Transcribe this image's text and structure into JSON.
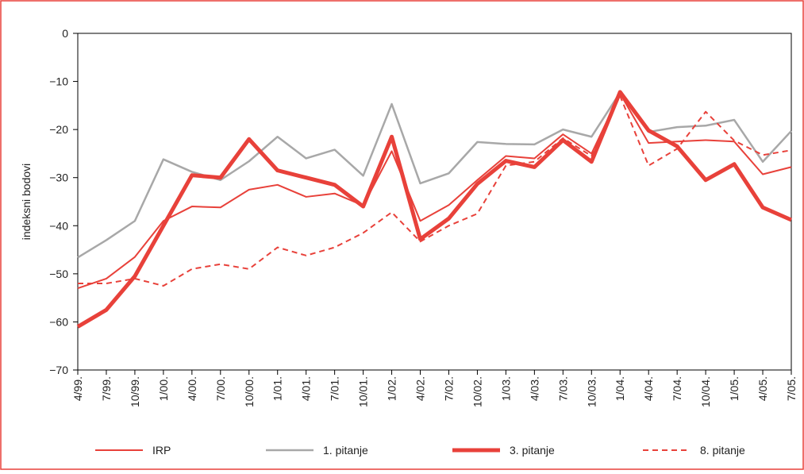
{
  "chart_data": {
    "type": "line",
    "ylabel": "indeksni bodovi",
    "categories": [
      "4/99.",
      "7/99.",
      "10/99.",
      "1/00.",
      "4/00.",
      "7/00.",
      "10/00.",
      "1/01.",
      "4/01.",
      "7/01.",
      "10/01.",
      "1/02.",
      "4/02.",
      "7/02.",
      "10/02.",
      "1/03.",
      "4/03.",
      "7/03.",
      "10/03.",
      "1/04.",
      "4/04.",
      "7/04.",
      "10/04.",
      "1/05.",
      "4/05.",
      "7/05."
    ],
    "series": [
      {
        "name": "IRP",
        "color": "#e8413a",
        "width": 2,
        "dash": false,
        "values": [
          -53,
          -51,
          -46.5,
          -39,
          -36,
          -36.2,
          -32.5,
          -31.5,
          -34,
          -33.3,
          -35.8,
          -24.5,
          -39,
          -35.7,
          -30.5,
          -25.5,
          -26,
          -21,
          -25,
          -12.5,
          -22.8,
          -22.5,
          -22.2,
          -22.5,
          -29.3,
          -27.8
        ]
      },
      {
        "name": "1. pitanje",
        "color": "#a8a8a8",
        "width": 2.5,
        "dash": false,
        "values": [
          -46.6,
          -43,
          -39,
          -26.2,
          -28.8,
          -30.5,
          -26.6,
          -21.5,
          -26,
          -24.2,
          -29.6,
          -14.7,
          -31.2,
          -29.1,
          -22.6,
          -23,
          -23.1,
          -20,
          -21.5,
          -12.3,
          -20.5,
          -19.5,
          -19.2,
          -18,
          -26.7,
          -20.3
        ]
      },
      {
        "name": "3. pitanje",
        "color": "#e8413a",
        "width": 5,
        "dash": false,
        "values": [
          -61,
          -57.5,
          -50.5,
          -40,
          -29.5,
          -30,
          -22,
          -28.5,
          -30,
          -31.5,
          -36,
          -21.5,
          -42.8,
          -38.5,
          -31.3,
          -26.5,
          -27.8,
          -22.2,
          -26.7,
          -12.2,
          -20.2,
          -23.5,
          -30.5,
          -27.2,
          -36.2,
          -38.8
        ]
      },
      {
        "name": "8. pitanje",
        "color": "#e8413a",
        "width": 2,
        "dash": true,
        "values": [
          -52,
          -52,
          -51,
          -52.5,
          -49,
          -48,
          -49,
          -44.5,
          -46.2,
          -44.5,
          -41.5,
          -37.2,
          -43.3,
          -40,
          -37.5,
          -27.5,
          -26.7,
          -21.8,
          -25.5,
          -13,
          -27.5,
          -24,
          -16.3,
          -22.3,
          -25.3,
          -24.3
        ]
      }
    ],
    "ylim": [
      -70,
      0
    ],
    "yticks": [
      0,
      {
        "value": -10,
        "label": "−10"
      },
      {
        "value": -20,
        "label": "−20"
      },
      {
        "value": -30,
        "label": "−30"
      },
      {
        "value": -40,
        "label": "−40"
      },
      {
        "value": -50,
        "label": "−50"
      },
      {
        "value": -60,
        "label": "−60"
      },
      {
        "value": -70,
        "label": "−70"
      }
    ],
    "grid": false,
    "legend": "bottom"
  }
}
